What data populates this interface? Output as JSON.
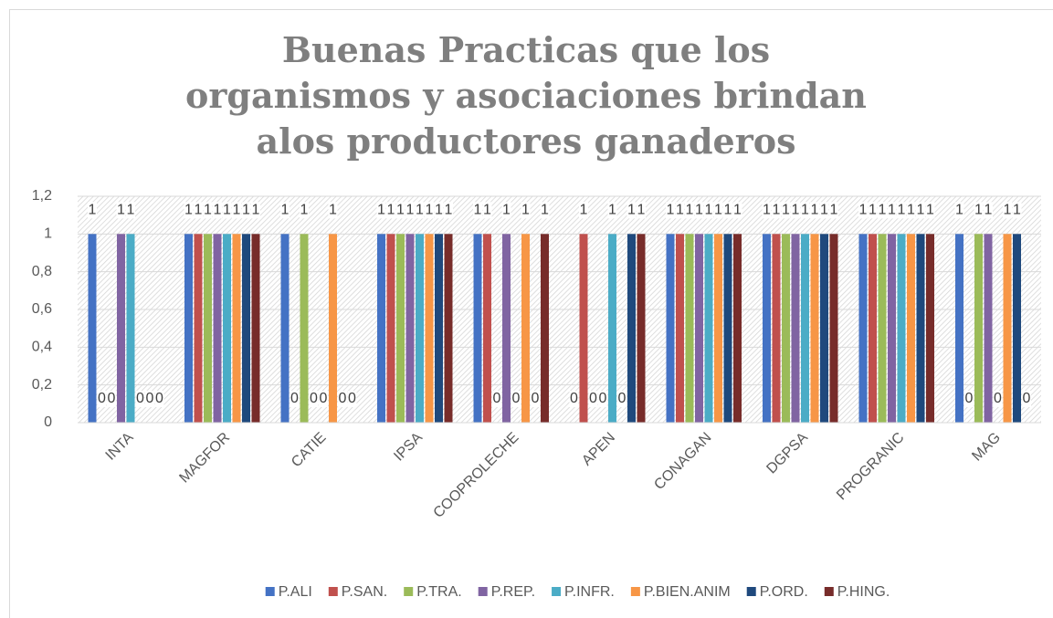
{
  "chart_data": {
    "type": "bar",
    "title": "Buenas Practicas que los organismos y asociaciones brindan alos productores ganaderos",
    "categories": [
      "INTA",
      "MAGFOR",
      "CATIE",
      "IPSA",
      "COOPROLECHE",
      "APEN",
      "CONAGAN",
      "DGPSA",
      "PROGRANIC",
      "MAG"
    ],
    "series": [
      {
        "name": "P.ALI",
        "color": "#4472c4",
        "values": [
          1,
          1,
          1,
          1,
          1,
          0,
          1,
          1,
          1,
          1
        ]
      },
      {
        "name": "P.SAN.",
        "color": "#c0504d",
        "values": [
          0,
          1,
          0,
          1,
          1,
          1,
          1,
          1,
          1,
          0
        ]
      },
      {
        "name": "P.TRA.",
        "color": "#9bbb59",
        "values": [
          0,
          1,
          1,
          1,
          0,
          0,
          1,
          1,
          1,
          1
        ]
      },
      {
        "name": "P.REP.",
        "color": "#8064a2",
        "values": [
          1,
          1,
          0,
          1,
          1,
          0,
          1,
          1,
          1,
          1
        ]
      },
      {
        "name": "P.INFR.",
        "color": "#4bacc6",
        "values": [
          1,
          1,
          0,
          1,
          0,
          1,
          1,
          1,
          1,
          0
        ]
      },
      {
        "name": "P.BIEN.ANIM",
        "color": "#f79646",
        "values": [
          0,
          1,
          1,
          1,
          1,
          0,
          1,
          1,
          1,
          1
        ]
      },
      {
        "name": "P.ORD.",
        "color": "#1f497d",
        "values": [
          0,
          1,
          0,
          1,
          0,
          1,
          1,
          1,
          1,
          1
        ]
      },
      {
        "name": "P.HING.",
        "color": "#772c2a",
        "values": [
          0,
          1,
          0,
          1,
          1,
          1,
          1,
          1,
          1,
          0
        ]
      }
    ],
    "ylim": [
      0,
      1.2
    ],
    "yticks": [
      0,
      {
        "value": 0.2,
        "label": "0,2"
      },
      {
        "value": 0.4,
        "label": "0,4"
      },
      {
        "value": 0.6,
        "label": "0,6"
      },
      {
        "value": 0.8,
        "label": "0,8"
      },
      1,
      {
        "value": 1.2,
        "label": "1,2"
      }
    ],
    "grid": true,
    "legend": "bottom"
  }
}
